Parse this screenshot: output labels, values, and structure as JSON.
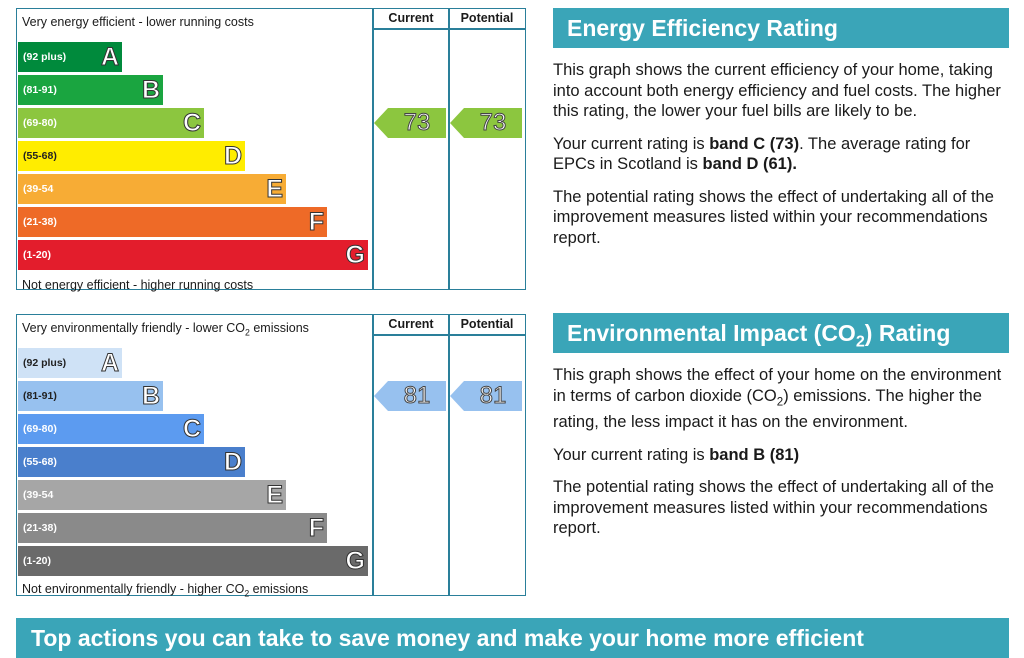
{
  "energy": {
    "top_text": "Very energy efficient - lower running costs",
    "bottom_text": "Not energy efficient - higher running costs",
    "col_current": "Current",
    "col_potential": "Potential",
    "bands": [
      {
        "range": "(92 plus)",
        "letter": "A",
        "color": "#008a3c"
      },
      {
        "range": "(81-91)",
        "letter": "B",
        "color": "#1aa540"
      },
      {
        "range": "(69-80)",
        "letter": "C",
        "color": "#8cc63f"
      },
      {
        "range": "(55-68)",
        "letter": "D",
        "color": "#ffed00"
      },
      {
        "range": "(39-54",
        "letter": "E",
        "color": "#f7ac35"
      },
      {
        "range": "(21-38)",
        "letter": "F",
        "color": "#ee6a27"
      },
      {
        "range": "(1-20)",
        "letter": "G",
        "color": "#e31d2c"
      }
    ],
    "current": {
      "value": "73",
      "band_index": 2,
      "color": "#8cc63f"
    },
    "potential": {
      "value": "73",
      "band_index": 2,
      "color": "#8cc63f"
    }
  },
  "environment": {
    "top_text_pre": "Very environmentally friendly - lower CO",
    "top_text_sub": "2",
    "top_text_post": " emissions",
    "bottom_text_pre": "Not environmentally friendly - higher CO",
    "bottom_text_sub": "2",
    "bottom_text_post": " emissions",
    "col_current": "Current",
    "col_potential": "Potential",
    "bands": [
      {
        "range": "(92 plus)",
        "letter": "A",
        "color": "#cfe2f6"
      },
      {
        "range": "(81-91)",
        "letter": "B",
        "color": "#97c1ef"
      },
      {
        "range": "(69-80)",
        "letter": "C",
        "color": "#5c9bf0"
      },
      {
        "range": "(55-68)",
        "letter": "D",
        "color": "#4a7fcc"
      },
      {
        "range": "(39-54",
        "letter": "E",
        "color": "#a6a6a6"
      },
      {
        "range": "(21-38)",
        "letter": "F",
        "color": "#8a8a8a"
      },
      {
        "range": "(1-20)",
        "letter": "G",
        "color": "#6a6a6a"
      }
    ],
    "current": {
      "value": "81",
      "band_index": 1,
      "color": "#97c1ef"
    },
    "potential": {
      "value": "81",
      "band_index": 1,
      "color": "#97c1ef"
    }
  },
  "energy_panel": {
    "title": "Energy Efficiency Rating",
    "p1": "This graph shows the current efficiency of your home, taking into account both energy efficiency and fuel costs. The higher this rating, the lower your fuel bills are likely to be.",
    "p2_a": "Your current rating is ",
    "p2_b": "band C (73)",
    "p2_c": ". The average rating for EPCs in Scotland is ",
    "p2_d": "band D (61).",
    "p3": "The potential rating shows the effect of undertaking all of the improvement measures listed within your recommendations report."
  },
  "env_panel": {
    "title_pre": "Environmental Impact (CO",
    "title_sub": "2",
    "title_post": ") Rating",
    "p1_a": "This graph shows the effect of your home on the environment in terms of carbon dioxide (CO",
    "p1_sub": "2",
    "p1_b": ") emissions. The higher the rating, the less impact it has on the environment.",
    "p2_a": "Your current rating is ",
    "p2_b": "band B (81)",
    "p3": "The potential rating shows the effect of undertaking all of the improvement measures listed within your recommendations report."
  },
  "bottom_bar": "Top actions you can take to save money and make your home more efficient"
}
